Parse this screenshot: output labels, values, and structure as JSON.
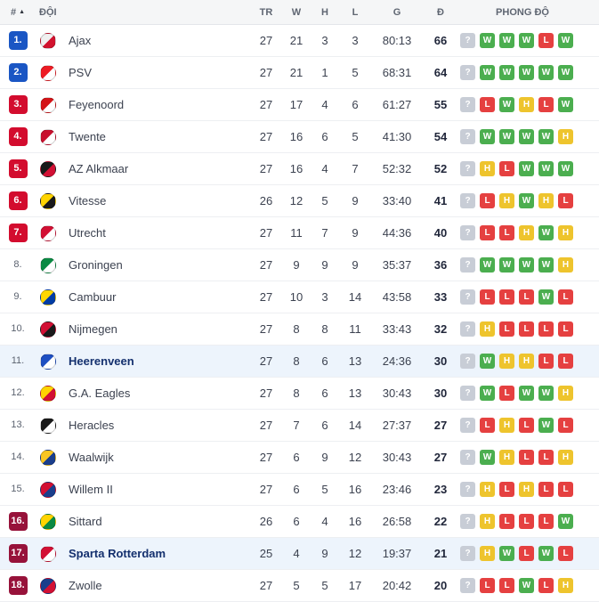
{
  "table": {
    "headers": {
      "rank": "#",
      "sort": "▲",
      "team": "ĐỘI",
      "played": "TR",
      "wins": "W",
      "draws": "H",
      "losses": "L",
      "goals": "G",
      "points": "Đ",
      "form": "PHONG ĐỘ"
    },
    "rows": [
      {
        "rank": "1.",
        "badge": "blue",
        "team": "Ajax",
        "played": 27,
        "wins": 21,
        "draws": 3,
        "losses": 3,
        "goals": "80:13",
        "points": 66,
        "form": [
          "?",
          "W",
          "W",
          "W",
          "L",
          "W"
        ],
        "highlight": false,
        "logo": [
          "#f0f0f0",
          "#d2122e"
        ]
      },
      {
        "rank": "2.",
        "badge": "blue",
        "team": "PSV",
        "played": 27,
        "wins": 21,
        "draws": 1,
        "losses": 5,
        "goals": "68:31",
        "points": 64,
        "form": [
          "?",
          "W",
          "W",
          "W",
          "W",
          "W"
        ],
        "highlight": false,
        "logo": [
          "#ed1c24",
          "#ffffff"
        ]
      },
      {
        "rank": "3.",
        "badge": "red",
        "team": "Feyenoord",
        "played": 27,
        "wins": 17,
        "draws": 4,
        "losses": 6,
        "goals": "61:27",
        "points": 55,
        "form": [
          "?",
          "L",
          "W",
          "H",
          "L",
          "W"
        ],
        "highlight": false,
        "logo": [
          "#d41317",
          "#ffffff"
        ]
      },
      {
        "rank": "4.",
        "badge": "red",
        "team": "Twente",
        "played": 27,
        "wins": 16,
        "draws": 6,
        "losses": 5,
        "goals": "41:30",
        "points": 54,
        "form": [
          "?",
          "W",
          "W",
          "W",
          "W",
          "H"
        ],
        "highlight": false,
        "logo": [
          "#c8102e",
          "#ffffff"
        ]
      },
      {
        "rank": "5.",
        "badge": "red",
        "team": "AZ Alkmaar",
        "played": 27,
        "wins": 16,
        "draws": 4,
        "losses": 7,
        "goals": "52:32",
        "points": 52,
        "form": [
          "?",
          "H",
          "L",
          "W",
          "W",
          "W"
        ],
        "highlight": false,
        "logo": [
          "#1a1a1a",
          "#d21034"
        ]
      },
      {
        "rank": "6.",
        "badge": "red",
        "team": "Vitesse",
        "played": 26,
        "wins": 12,
        "draws": 5,
        "losses": 9,
        "goals": "33:40",
        "points": 41,
        "form": [
          "?",
          "L",
          "H",
          "W",
          "H",
          "L"
        ],
        "highlight": false,
        "logo": [
          "#ffd400",
          "#1a1a1a"
        ]
      },
      {
        "rank": "7.",
        "badge": "red",
        "team": "Utrecht",
        "played": 27,
        "wins": 11,
        "draws": 7,
        "losses": 9,
        "goals": "44:36",
        "points": 40,
        "form": [
          "?",
          "L",
          "L",
          "H",
          "W",
          "H"
        ],
        "highlight": false,
        "logo": [
          "#d21034",
          "#ffffff"
        ]
      },
      {
        "rank": "8.",
        "badge": "none",
        "team": "Groningen",
        "played": 27,
        "wins": 9,
        "draws": 9,
        "losses": 9,
        "goals": "35:37",
        "points": 36,
        "form": [
          "?",
          "W",
          "W",
          "W",
          "W",
          "H"
        ],
        "highlight": false,
        "logo": [
          "#0a8a43",
          "#ffffff"
        ]
      },
      {
        "rank": "9.",
        "badge": "none",
        "team": "Cambuur",
        "played": 27,
        "wins": 10,
        "draws": 3,
        "losses": 14,
        "goals": "43:58",
        "points": 33,
        "form": [
          "?",
          "L",
          "L",
          "L",
          "W",
          "L"
        ],
        "highlight": false,
        "logo": [
          "#ffd700",
          "#003da5"
        ]
      },
      {
        "rank": "10.",
        "badge": "none",
        "team": "Nijmegen",
        "played": 27,
        "wins": 8,
        "draws": 8,
        "losses": 11,
        "goals": "33:43",
        "points": 32,
        "form": [
          "?",
          "H",
          "L",
          "L",
          "L",
          "L"
        ],
        "highlight": false,
        "logo": [
          "#d21034",
          "#1a1a1a"
        ]
      },
      {
        "rank": "11.",
        "badge": "none",
        "team": "Heerenveen",
        "played": 27,
        "wins": 8,
        "draws": 6,
        "losses": 13,
        "goals": "24:36",
        "points": 30,
        "form": [
          "?",
          "W",
          "H",
          "H",
          "L",
          "L"
        ],
        "highlight": true,
        "logo": [
          "#1e4fc2",
          "#ffffff"
        ]
      },
      {
        "rank": "12.",
        "badge": "none",
        "team": "G.A. Eagles",
        "played": 27,
        "wins": 8,
        "draws": 6,
        "losses": 13,
        "goals": "30:43",
        "points": 30,
        "form": [
          "?",
          "W",
          "L",
          "W",
          "W",
          "H"
        ],
        "highlight": false,
        "logo": [
          "#ffd400",
          "#d21034"
        ]
      },
      {
        "rank": "13.",
        "badge": "none",
        "team": "Heracles",
        "played": 27,
        "wins": 7,
        "draws": 6,
        "losses": 14,
        "goals": "27:37",
        "points": 27,
        "form": [
          "?",
          "L",
          "H",
          "L",
          "W",
          "L"
        ],
        "highlight": false,
        "logo": [
          "#1a1a1a",
          "#ffffff"
        ]
      },
      {
        "rank": "14.",
        "badge": "none",
        "team": "Waalwijk",
        "played": 27,
        "wins": 6,
        "draws": 9,
        "losses": 12,
        "goals": "30:43",
        "points": 27,
        "form": [
          "?",
          "W",
          "H",
          "L",
          "L",
          "H"
        ],
        "highlight": false,
        "logo": [
          "#f9c623",
          "#1a3e8c"
        ]
      },
      {
        "rank": "15.",
        "badge": "none",
        "team": "Willem II",
        "played": 27,
        "wins": 6,
        "draws": 5,
        "losses": 16,
        "goals": "23:46",
        "points": 23,
        "form": [
          "?",
          "H",
          "L",
          "H",
          "L",
          "L"
        ],
        "highlight": false,
        "logo": [
          "#d21034",
          "#1a3e8c"
        ]
      },
      {
        "rank": "16.",
        "badge": "maroon",
        "team": "Sittard",
        "played": 26,
        "wins": 6,
        "draws": 4,
        "losses": 16,
        "goals": "26:58",
        "points": 22,
        "form": [
          "?",
          "H",
          "L",
          "L",
          "L",
          "W"
        ],
        "highlight": false,
        "logo": [
          "#ffd400",
          "#0a8a43"
        ]
      },
      {
        "rank": "17.",
        "badge": "maroon",
        "team": "Sparta Rotterdam",
        "played": 25,
        "wins": 4,
        "draws": 9,
        "losses": 12,
        "goals": "19:37",
        "points": 21,
        "form": [
          "?",
          "H",
          "W",
          "L",
          "W",
          "L"
        ],
        "highlight": true,
        "logo": [
          "#d21034",
          "#ffffff"
        ]
      },
      {
        "rank": "18.",
        "badge": "maroon",
        "team": "Zwolle",
        "played": 27,
        "wins": 5,
        "draws": 5,
        "losses": 17,
        "goals": "20:42",
        "points": 20,
        "form": [
          "?",
          "L",
          "L",
          "W",
          "L",
          "H"
        ],
        "highlight": false,
        "logo": [
          "#1a3e8c",
          "#d21034"
        ]
      }
    ]
  },
  "colors": {
    "badge": {
      "blue": "#1a56c4",
      "red": "#d30c2e",
      "maroon": "#97123a"
    },
    "form": {
      "W": "#4bae4f",
      "L": "#e54040",
      "H": "#eec42d",
      "?": "#c8cdd6"
    },
    "highlight_row": "#edf4fc"
  }
}
